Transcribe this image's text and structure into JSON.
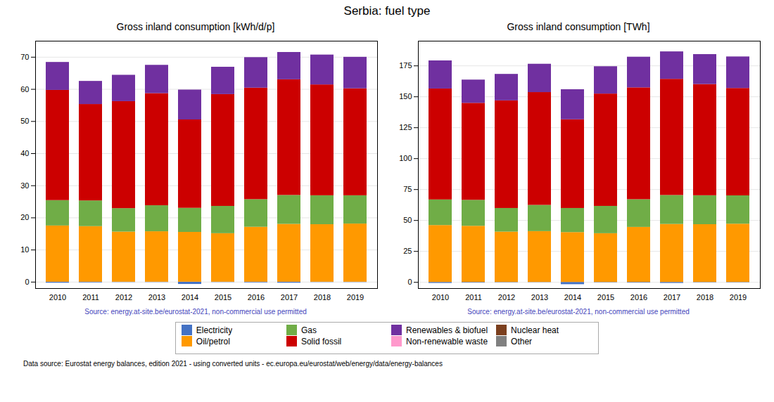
{
  "title": "Serbia: fuel type",
  "annotations": [
    "Data source: Eurostat energy balances, edition 2021 - using converted units - ec.europa.eu/eurostat/web/energy/data/energy-balances"
  ],
  "chart_data": [
    {
      "type": "bar",
      "stacked": true,
      "grid": true,
      "title": "Gross inland consumption [kWh/d/p]",
      "annotations": [
        "Source: energy.at-site.be/eurostat-2021, non-commercial use permitted"
      ],
      "categories": [
        2010,
        2011,
        2012,
        2013,
        2014,
        2015,
        2016,
        2017,
        2018,
        2019
      ],
      "ylim": [
        -2,
        75
      ],
      "yticks": [
        0,
        10,
        20,
        30,
        40,
        50,
        60,
        70
      ],
      "series": [
        {
          "name": "Electricity",
          "color": "#4472c4",
          "values": [
            -0.3,
            -0.2,
            -0.1,
            -0.1,
            -0.7,
            -0.1,
            -0.2,
            -0.3,
            -0.1,
            -0.1
          ]
        },
        {
          "name": "Oil/petrol",
          "color": "#ff9900",
          "values": [
            17.5,
            17.3,
            15.6,
            15.7,
            15.5,
            15.1,
            17.1,
            18.0,
            17.9,
            18.1
          ]
        },
        {
          "name": "Gas",
          "color": "#70ad47",
          "values": [
            7.9,
            8.0,
            7.3,
            8.1,
            7.5,
            8.5,
            8.6,
            9.0,
            9.0,
            8.8
          ]
        },
        {
          "name": "Solid fossil",
          "color": "#cc0000",
          "values": [
            34.3,
            30.0,
            33.3,
            34.9,
            27.5,
            34.8,
            34.7,
            36.0,
            34.5,
            33.3
          ]
        },
        {
          "name": "Renewables & biofuel",
          "color": "#7030a0",
          "values": [
            8.7,
            7.2,
            8.2,
            8.8,
            9.3,
            8.5,
            9.5,
            8.5,
            9.3,
            9.8
          ]
        },
        {
          "name": "Non-renewable waste",
          "color": "#ff99cc",
          "values": [
            0.0,
            0.0,
            0.0,
            0.0,
            0.0,
            0.0,
            0.0,
            0.0,
            0.0,
            0.0
          ]
        },
        {
          "name": "Nuclear heat",
          "color": "#7b3f1e",
          "values": [
            0.0,
            0.0,
            0.0,
            0.0,
            0.0,
            0.0,
            0.0,
            0.0,
            0.0,
            0.0
          ]
        },
        {
          "name": "Other",
          "color": "#808080",
          "values": [
            0.0,
            0.0,
            0.0,
            0.0,
            0.0,
            0.0,
            0.0,
            0.0,
            0.0,
            0.0
          ]
        }
      ]
    },
    {
      "type": "bar",
      "stacked": true,
      "grid": true,
      "title": "Gross inland consumption [TWh]",
      "annotations": [
        "Source: energy.at-site.be/eurostat-2021, non-commercial use permitted"
      ],
      "categories": [
        2010,
        2011,
        2012,
        2013,
        2014,
        2015,
        2016,
        2017,
        2018,
        2019
      ],
      "ylim": [
        -5,
        195
      ],
      "yticks": [
        0,
        25,
        50,
        75,
        100,
        125,
        150,
        175
      ],
      "series": [
        {
          "name": "Electricity",
          "color": "#4472c4",
          "values": [
            -0.8,
            -0.5,
            -0.3,
            -0.2,
            -1.8,
            -0.3,
            -0.5,
            -0.8,
            -0.3,
            -0.3
          ]
        },
        {
          "name": "Oil/petrol",
          "color": "#ff9900",
          "values": [
            46.0,
            45.4,
            40.7,
            41.1,
            40.3,
            39.4,
            44.5,
            46.9,
            46.7,
            47.1
          ]
        },
        {
          "name": "Gas",
          "color": "#70ad47",
          "values": [
            20.7,
            21.0,
            19.1,
            21.2,
            19.5,
            22.1,
            22.4,
            23.4,
            23.4,
            22.9
          ]
        },
        {
          "name": "Solid fossil",
          "color": "#cc0000",
          "values": [
            89.7,
            78.4,
            87.0,
            91.2,
            71.7,
            90.8,
            90.4,
            93.9,
            89.9,
            86.8
          ]
        },
        {
          "name": "Renewables & biofuel",
          "color": "#7030a0",
          "values": [
            22.7,
            18.8,
            21.4,
            22.9,
            24.3,
            22.1,
            24.8,
            22.2,
            24.2,
            25.5
          ]
        },
        {
          "name": "Non-renewable waste",
          "color": "#ff99cc",
          "values": [
            0.0,
            0.0,
            0.0,
            0.0,
            0.0,
            0.0,
            0.0,
            0.0,
            0.0,
            0.0
          ]
        },
        {
          "name": "Nuclear heat",
          "color": "#7b3f1e",
          "values": [
            0.0,
            0.0,
            0.0,
            0.0,
            0.0,
            0.0,
            0.0,
            0.0,
            0.0,
            0.0
          ]
        },
        {
          "name": "Other",
          "color": "#808080",
          "values": [
            0.0,
            0.0,
            0.0,
            0.0,
            0.0,
            0.0,
            0.0,
            0.0,
            0.0,
            0.0
          ]
        }
      ]
    }
  ]
}
